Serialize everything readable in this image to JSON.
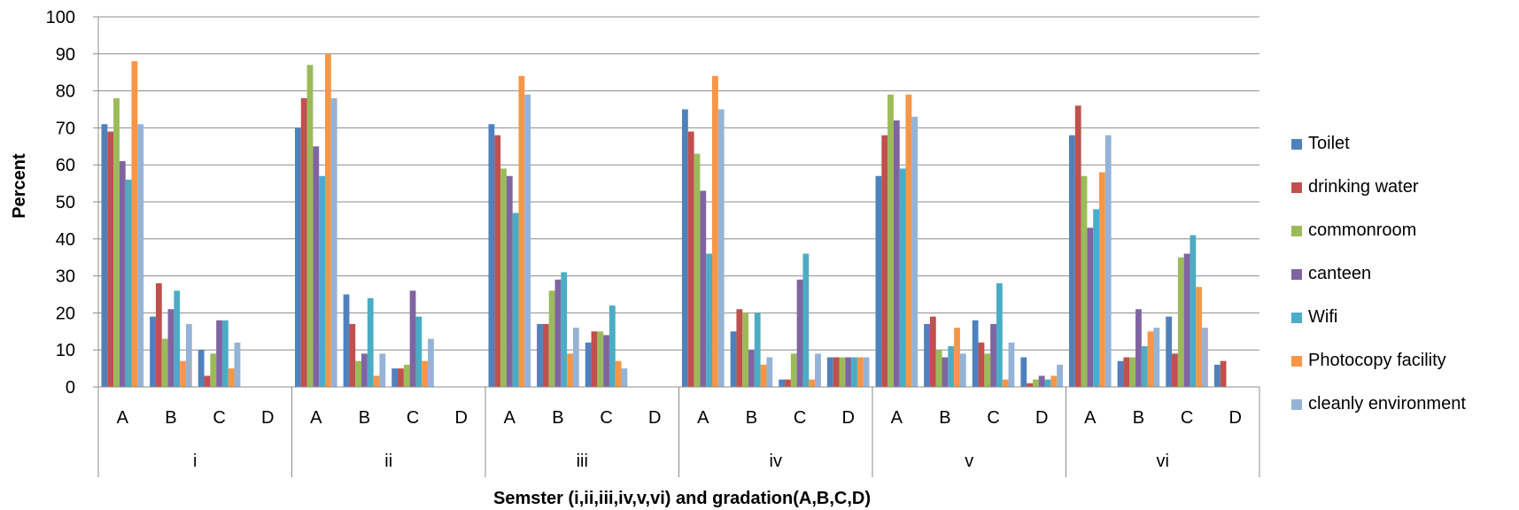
{
  "chart_data": {
    "type": "bar",
    "title": "",
    "ylabel": "Percent",
    "xlabel": "Semster (i,ii,iii,iv,v,vi) and gradation(A,B,C,D)",
    "ylim": [
      0,
      100
    ],
    "yticks": [
      0,
      10,
      20,
      30,
      40,
      50,
      60,
      70,
      80,
      90,
      100
    ],
    "grid": true,
    "legend_position": "right",
    "groups": [
      "i",
      "ii",
      "iii",
      "iv",
      "v",
      "vi"
    ],
    "subcategories": [
      "A",
      "B",
      "C",
      "D"
    ],
    "series": [
      {
        "name": "Toilet",
        "color": "#4F81BD",
        "values": [
          [
            71,
            19,
            10,
            null
          ],
          [
            70,
            25,
            5,
            null
          ],
          [
            71,
            17,
            12,
            null
          ],
          [
            75,
            15,
            2,
            8
          ],
          [
            57,
            17,
            18,
            8
          ],
          [
            68,
            7,
            19,
            6
          ]
        ]
      },
      {
        "name": "drinking water",
        "color": "#C0504D",
        "values": [
          [
            69,
            28,
            3,
            null
          ],
          [
            78,
            17,
            5,
            null
          ],
          [
            68,
            17,
            15,
            null
          ],
          [
            69,
            21,
            2,
            8
          ],
          [
            68,
            19,
            12,
            1
          ],
          [
            76,
            8,
            9,
            7
          ]
        ]
      },
      {
        "name": "commonroom",
        "color": "#9BBB59",
        "values": [
          [
            78,
            13,
            9,
            null
          ],
          [
            87,
            7,
            6,
            null
          ],
          [
            59,
            26,
            15,
            null
          ],
          [
            63,
            20,
            9,
            8
          ],
          [
            79,
            10,
            9,
            2
          ],
          [
            57,
            8,
            35,
            null
          ]
        ]
      },
      {
        "name": "canteen",
        "color": "#8064A2",
        "values": [
          [
            61,
            21,
            18,
            null
          ],
          [
            65,
            9,
            26,
            null
          ],
          [
            57,
            29,
            14,
            null
          ],
          [
            53,
            10,
            29,
            8
          ],
          [
            72,
            8,
            17,
            3
          ],
          [
            43,
            21,
            36,
            null
          ]
        ]
      },
      {
        "name": "Wifi",
        "color": "#4BACC6",
        "values": [
          [
            56,
            26,
            18,
            null
          ],
          [
            57,
            24,
            19,
            null
          ],
          [
            47,
            31,
            22,
            null
          ],
          [
            36,
            20,
            36,
            8
          ],
          [
            59,
            11,
            28,
            2
          ],
          [
            48,
            11,
            41,
            null
          ]
        ]
      },
      {
        "name": "Photocopy facility",
        "color": "#F79646",
        "values": [
          [
            88,
            7,
            5,
            null
          ],
          [
            90,
            3,
            7,
            null
          ],
          [
            84,
            9,
            7,
            null
          ],
          [
            84,
            6,
            2,
            8
          ],
          [
            79,
            16,
            2,
            3
          ],
          [
            58,
            15,
            27,
            null
          ]
        ]
      },
      {
        "name": "cleanly environment",
        "color": "#95B3D7",
        "values": [
          [
            71,
            17,
            12,
            null
          ],
          [
            78,
            9,
            13,
            null
          ],
          [
            79,
            16,
            5,
            null
          ],
          [
            75,
            8,
            9,
            8
          ],
          [
            73,
            9,
            12,
            6
          ],
          [
            68,
            16,
            16,
            null
          ]
        ]
      }
    ]
  }
}
